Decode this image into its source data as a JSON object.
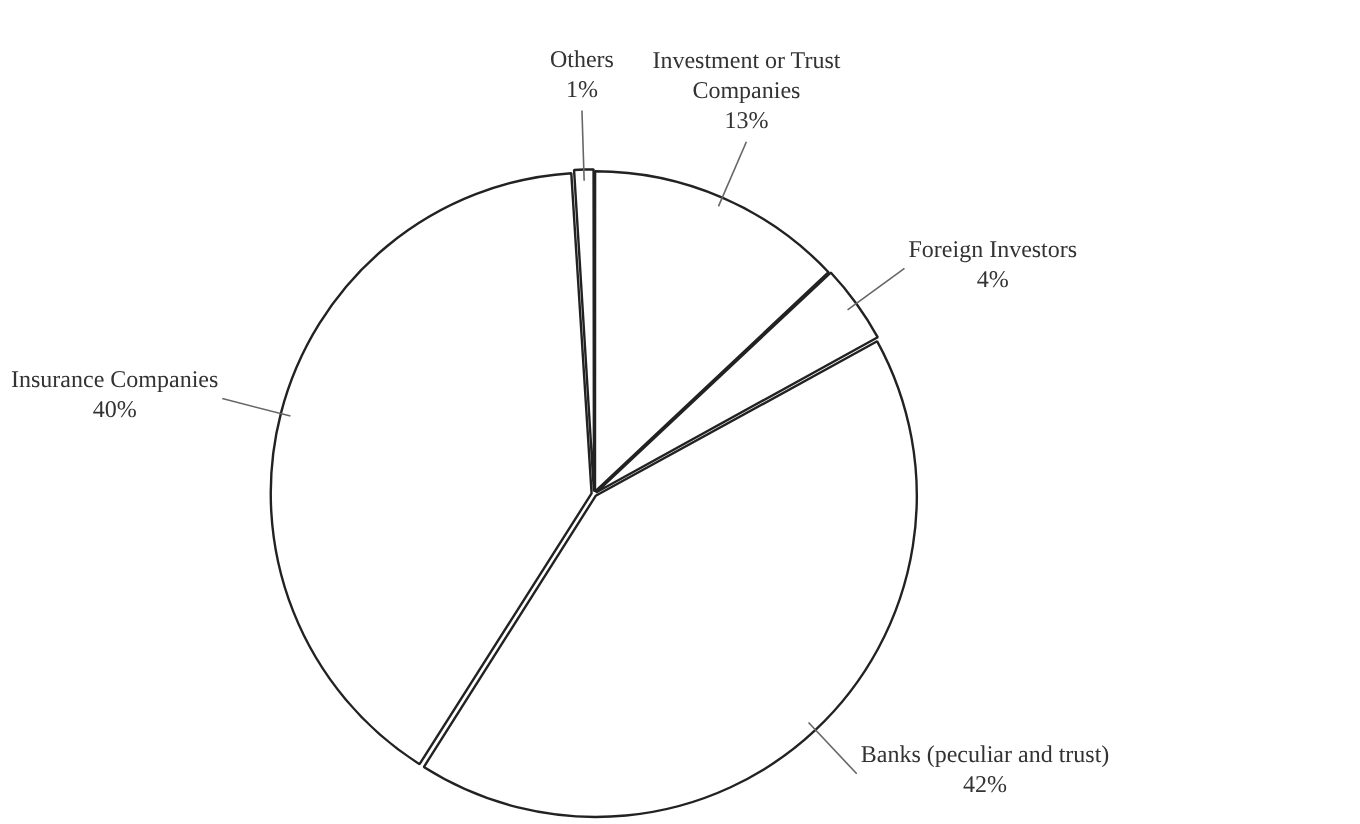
{
  "chart_data": {
    "type": "pie",
    "categories": [
      "Investment or Trust Companies",
      "Foreign Investors",
      "Banks (peculiar and trust)",
      "Insurance Companies",
      "Others"
    ],
    "values": [
      13,
      4,
      42,
      40,
      1
    ],
    "colors": [
      "#ffffff",
      "#ffffff",
      "#ffffff",
      "#ffffff",
      "#ffffff"
    ],
    "value_labels": [
      "13%",
      "4%",
      "42%",
      "40%",
      "1%"
    ],
    "legend": false
  }
}
